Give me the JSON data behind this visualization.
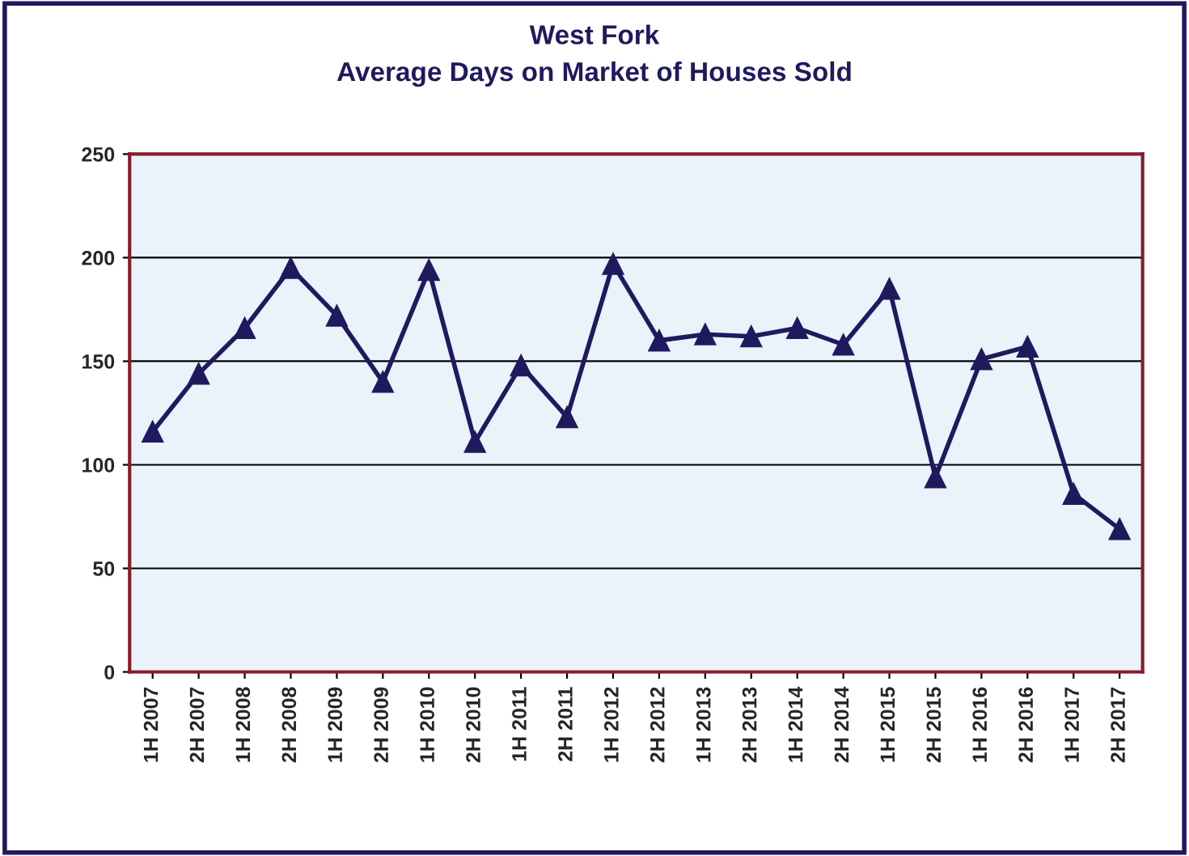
{
  "chart_data": {
    "type": "line",
    "title": "West Fork\nAverage Days on Market of Houses Sold",
    "categories": [
      "1H 2007",
      "2H 2007",
      "1H 2008",
      "2H 2008",
      "1H 2009",
      "2H 2009",
      "1H 2010",
      "2H 2010",
      "1H 2011",
      "2H 2011",
      "1H 2012",
      "2H 2012",
      "1H 2013",
      "2H 2013",
      "1H 2014",
      "2H 2014",
      "1H 2015",
      "2H 2015",
      "1H 2016",
      "2H 2016",
      "1H 2017",
      "2H 2017"
    ],
    "series": [
      {
        "color": "#1f1a5e",
        "values": [
          116,
          144,
          166,
          195,
          172,
          140,
          194,
          111,
          148,
          123,
          197,
          160,
          163,
          162,
          166,
          158,
          185,
          94,
          151,
          157,
          86,
          69
        ]
      }
    ],
    "ylim": [
      0,
      250
    ],
    "yticks": [
      0,
      50,
      100,
      150,
      200,
      250
    ],
    "grid": "y",
    "marker": "triangle",
    "line_style": "solid",
    "legend": false
  }
}
